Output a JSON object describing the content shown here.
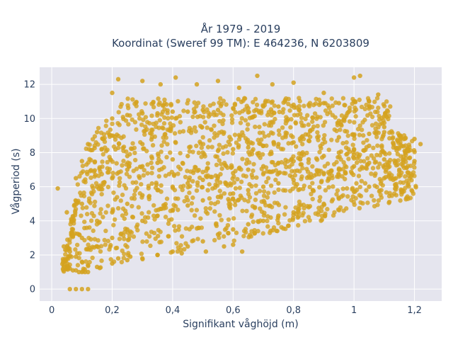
{
  "chart_data": {
    "type": "scatter",
    "title_lines": [
      "År 1979 - 2019",
      "Koordinat (Sweref 99 TM): E 464236, N 6203809"
    ],
    "xlabel": "Signifikant våghöjd (m)",
    "ylabel": "Vågperiod (s)",
    "xlim": [
      -0.04,
      1.29
    ],
    "ylim": [
      -0.7,
      13.0
    ],
    "x_ticks": [
      0,
      0.2,
      0.4,
      0.6,
      0.8,
      1.0,
      1.2
    ],
    "x_tick_labels": [
      "0",
      "0,2",
      "0,4",
      "0,6",
      "0,8",
      "1",
      "1,2"
    ],
    "y_ticks": [
      0,
      2,
      4,
      6,
      8,
      10,
      12
    ],
    "y_tick_labels": [
      "0",
      "2",
      "4",
      "6",
      "8",
      "10",
      "12"
    ],
    "grid": true,
    "marker_color": "#D4A21F",
    "background_color": "#E5E5EE",
    "series": [
      {
        "x": [
          0.02,
          0.04,
          0.04,
          0.05,
          0.06,
          0.07,
          0.08,
          0.09,
          0.1,
          0.11,
          0.12,
          0.04,
          0.06,
          0.08,
          0.1,
          0.12,
          0.15,
          0.2,
          0.25,
          0.3,
          0.35,
          0.4,
          0.45,
          0.5,
          0.55,
          0.6,
          0.65,
          0.7,
          0.75,
          0.8,
          0.85,
          0.9,
          0.95,
          1.0,
          1.05,
          1.1,
          1.15,
          1.2,
          0.05,
          0.08,
          0.1,
          0.12,
          0.15,
          0.2,
          0.25,
          0.3,
          0.35,
          0.4,
          0.45,
          0.5,
          0.55,
          0.6,
          0.65,
          0.7,
          0.75,
          0.8,
          0.85,
          0.9,
          0.95,
          1.0,
          1.05,
          1.1,
          1.15,
          1.2,
          1.22,
          0.07,
          0.1,
          0.15,
          0.2,
          0.25,
          0.3,
          0.35,
          0.4,
          0.45,
          0.5,
          0.55,
          0.6,
          0.65,
          0.7,
          0.75,
          0.8,
          0.85,
          0.9,
          0.95,
          1.0,
          1.05,
          1.1,
          1.15,
          0.1,
          0.15,
          0.2,
          0.25,
          0.3,
          0.35,
          0.4,
          0.45,
          0.5,
          0.55,
          0.6,
          0.65,
          0.7,
          0.75,
          0.8,
          0.85,
          0.9,
          0.95,
          1.0,
          1.05,
          1.1,
          0.15,
          0.2,
          0.25,
          0.3,
          0.35,
          0.4,
          0.45,
          0.5,
          0.55,
          0.6,
          0.65,
          0.7,
          0.75,
          0.8,
          0.85,
          0.9,
          0.95,
          1.0,
          1.05,
          1.1,
          0.2,
          0.22,
          0.3,
          0.36,
          0.41,
          0.48,
          0.55,
          0.62,
          0.68,
          0.73,
          0.8,
          0.9,
          1.0,
          1.02,
          1.08,
          0.63,
          0.22,
          0.26,
          0.35,
          0.43,
          0.51,
          0.57,
          0.6,
          0.25,
          0.3,
          0.06,
          0.08,
          0.1,
          0.12
        ],
        "y": [
          5.9,
          1.4,
          1.3,
          1.2,
          1.2,
          1.1,
          1.1,
          1.0,
          1.0,
          1.0,
          1.0,
          2.5,
          2.2,
          1.9,
          1.6,
          1.4,
          1.3,
          1.5,
          1.7,
          1.8,
          2.0,
          2.2,
          2.5,
          2.8,
          3.2,
          3.5,
          3.8,
          4.0,
          4.3,
          4.5,
          4.8,
          5.0,
          5.3,
          5.7,
          6.0,
          6.5,
          7.0,
          7.5,
          4.5,
          6.5,
          7.5,
          8.5,
          9.2,
          10.0,
          10.2,
          10.3,
          10.3,
          10.4,
          10.4,
          10.5,
          10.5,
          10.6,
          10.6,
          10.7,
          10.7,
          10.8,
          10.8,
          10.9,
          10.9,
          11.0,
          11.0,
          9.5,
          9.0,
          8.8,
          8.5,
          3.5,
          5.0,
          6.0,
          6.5,
          7.0,
          7.2,
          7.4,
          7.6,
          7.8,
          8.0,
          8.1,
          8.2,
          8.3,
          8.4,
          8.5,
          8.6,
          8.7,
          8.8,
          8.9,
          9.0,
          9.1,
          9.2,
          9.0,
          3.0,
          4.0,
          4.5,
          5.0,
          5.5,
          5.8,
          6.0,
          6.2,
          6.4,
          6.6,
          6.8,
          7.0,
          7.2,
          7.4,
          7.5,
          7.6,
          7.8,
          8.0,
          8.2,
          8.4,
          8.0,
          2.5,
          3.0,
          3.5,
          4.0,
          4.3,
          4.6,
          4.9,
          5.2,
          5.4,
          5.6,
          5.8,
          6.0,
          6.2,
          6.4,
          6.6,
          6.8,
          7.0,
          7.2,
          7.4,
          7.6,
          11.5,
          12.3,
          12.2,
          12.0,
          12.4,
          12.0,
          12.2,
          11.8,
          12.5,
          12.0,
          12.1,
          11.5,
          12.4,
          12.5,
          11.4,
          2.2,
          1.8,
          1.9,
          2.0,
          2.1,
          2.2,
          2.5,
          2.6,
          7.8,
          8.5,
          0.0,
          0.0,
          0.0,
          0.0
        ]
      }
    ]
  }
}
